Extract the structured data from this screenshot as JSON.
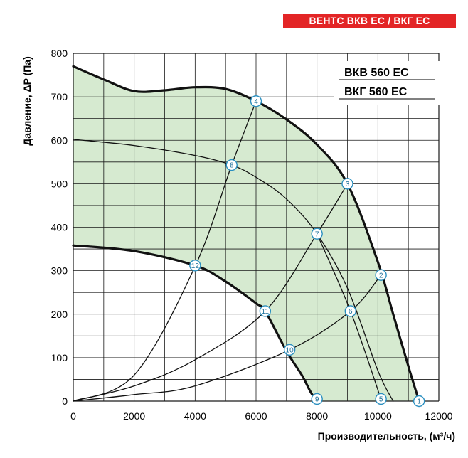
{
  "brand_label": "ВЕНТС ВКВ ЕС / ВКГ ЕС",
  "colors": {
    "brand_bg": "#e32526",
    "fill": "#d6ead0",
    "point_stroke": "#2a8fc0"
  },
  "chart_data": {
    "type": "line",
    "title": "",
    "annotations": [
      "ВКВ 560 ЕС",
      "ВКГ 560 ЕС"
    ],
    "xlabel": "Производительность, (м³/ч)",
    "ylabel": "Давление, ΔP (Па)",
    "xlim": [
      0,
      12000
    ],
    "ylim": [
      0,
      800
    ],
    "xticks": [
      "0",
      "2000",
      "4000",
      "6000",
      "8000",
      "10000",
      "12000"
    ],
    "yticks": [
      "0",
      "100",
      "200",
      "300",
      "400",
      "500",
      "600",
      "700",
      "800"
    ],
    "grid": true,
    "shaded_region": "between max-speed and min-speed fan curves",
    "series": [
      {
        "role": "fan-curve-max",
        "x": [
          0,
          1000,
          2000,
          3000,
          4000,
          5000,
          6000,
          7000,
          8000,
          9000,
          10000,
          10500,
          11000,
          11350
        ],
        "y": [
          770,
          740,
          713,
          715,
          722,
          718,
          690,
          648,
          590,
          500,
          320,
          200,
          80,
          0
        ]
      },
      {
        "role": "fan-curve-mid",
        "x": [
          0,
          2000,
          4000,
          5200,
          6000,
          7000,
          8000,
          9000,
          10000,
          10500
        ],
        "y": [
          602,
          588,
          565,
          543,
          515,
          465,
          385,
          260,
          70,
          0
        ]
      },
      {
        "role": "fan-curve-min",
        "x": [
          0,
          2000,
          4000,
          5000,
          6000,
          6300,
          7000,
          7500,
          7800,
          8000
        ],
        "y": [
          358,
          345,
          312,
          275,
          225,
          207,
          115,
          60,
          20,
          0
        ]
      },
      {
        "role": "system-curve",
        "x": [
          0,
          2000,
          4000,
          5200,
          6000
        ],
        "y": [
          0,
          60,
          310,
          543,
          690
        ]
      },
      {
        "role": "system-curve",
        "x": [
          0,
          2000,
          4000,
          6300,
          8000,
          9000
        ],
        "y": [
          0,
          35,
          95,
          207,
          385,
          500
        ]
      },
      {
        "role": "system-curve",
        "x": [
          0,
          2000,
          4000,
          7100,
          9100,
          10100
        ],
        "y": [
          0,
          15,
          35,
          118,
          207,
          290
        ]
      },
      {
        "role": "system-curve",
        "x": [
          8000,
          9100,
          10100
        ],
        "y": [
          385,
          207,
          5
        ]
      }
    ],
    "points": [
      {
        "label": "1",
        "x": 11350,
        "y": 0
      },
      {
        "label": "2",
        "x": 10100,
        "y": 290
      },
      {
        "label": "3",
        "x": 9000,
        "y": 500
      },
      {
        "label": "4",
        "x": 6000,
        "y": 690
      },
      {
        "label": "5",
        "x": 10100,
        "y": 5
      },
      {
        "label": "6",
        "x": 9100,
        "y": 207
      },
      {
        "label": "7",
        "x": 8000,
        "y": 385
      },
      {
        "label": "8",
        "x": 5200,
        "y": 543
      },
      {
        "label": "9",
        "x": 8000,
        "y": 5
      },
      {
        "label": "10",
        "x": 7100,
        "y": 118
      },
      {
        "label": "11",
        "x": 6300,
        "y": 207
      },
      {
        "label": "12",
        "x": 4000,
        "y": 312
      }
    ]
  }
}
